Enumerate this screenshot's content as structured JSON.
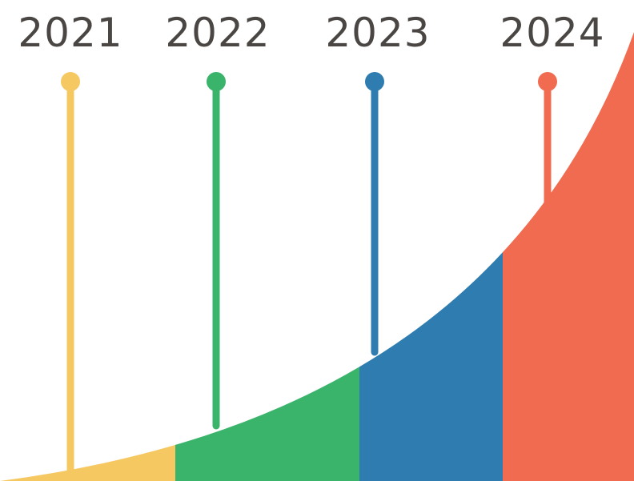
{
  "timeline": {
    "milestones": [
      {
        "year": "2021",
        "color": "#f5c862"
      },
      {
        "year": "2022",
        "color": "#3ab36b"
      },
      {
        "year": "2023",
        "color": "#2e7cb0"
      },
      {
        "year": "2024",
        "color": "#f06b50"
      }
    ]
  }
}
